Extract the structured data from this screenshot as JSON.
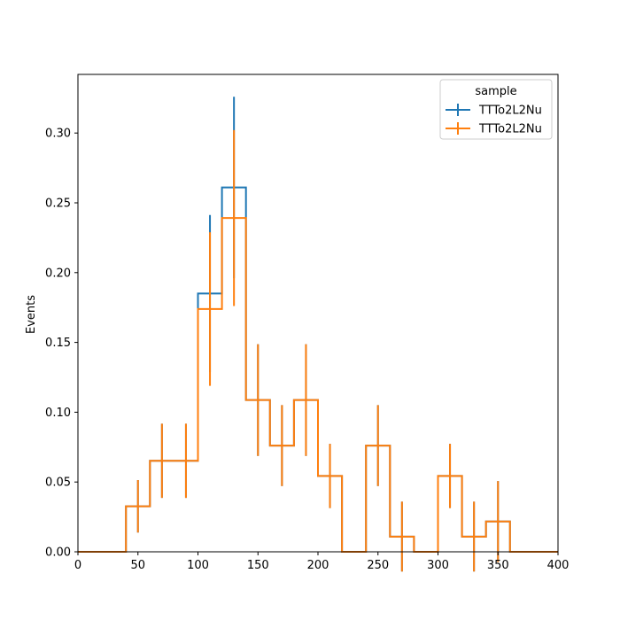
{
  "chart_data": {
    "type": "histogram-step",
    "title": "",
    "xlabel": "",
    "ylabel": "Events",
    "xlim": [
      0,
      400
    ],
    "ylim": [
      0,
      0.342
    ],
    "grid": false,
    "x_ticks": [
      0,
      50,
      100,
      150,
      200,
      250,
      300,
      350,
      400
    ],
    "y_ticks": [
      0.0,
      0.05,
      0.1,
      0.15,
      0.2,
      0.25,
      0.3
    ],
    "y_tick_labels": [
      "0.00",
      "0.05",
      "0.10",
      "0.15",
      "0.20",
      "0.25",
      "0.30"
    ],
    "bin_edges": [
      0,
      20,
      40,
      60,
      80,
      100,
      120,
      140,
      160,
      180,
      200,
      220,
      240,
      260,
      280,
      300,
      320,
      340,
      360,
      380,
      400
    ],
    "legend": {
      "title": "sample",
      "placement": "top-right"
    },
    "series": [
      {
        "name": "TTTo2L2Nu",
        "color": "#1f77b4",
        "values": [
          0,
          0,
          0.0326,
          0.0652,
          0.0652,
          0.185,
          0.261,
          0.1087,
          0.0761,
          0.1087,
          0.0543,
          0,
          0.0761,
          0.0109,
          0,
          0.0543,
          0.0109,
          0.0217,
          0,
          0
        ],
        "errors": [
          0,
          0,
          0.0188,
          0.0266,
          0.0266,
          0.0563,
          0.065,
          0.04,
          0.029,
          0.04,
          0.023,
          0,
          0.029,
          0.025,
          0,
          0.023,
          0.025,
          0.029,
          0,
          0
        ]
      },
      {
        "name": "TTTo2L2Nu",
        "color": "#ff7f0e",
        "values": [
          0,
          0,
          0.0326,
          0.0652,
          0.0652,
          0.1739,
          0.2391,
          0.1087,
          0.0761,
          0.1087,
          0.0543,
          0,
          0.0761,
          0.0109,
          0,
          0.0543,
          0.0109,
          0.0217,
          0,
          0
        ],
        "errors": [
          0,
          0,
          0.0188,
          0.0266,
          0.0266,
          0.055,
          0.063,
          0.04,
          0.029,
          0.04,
          0.023,
          0,
          0.029,
          0.025,
          0,
          0.023,
          0.025,
          0.029,
          0,
          0
        ]
      }
    ]
  }
}
